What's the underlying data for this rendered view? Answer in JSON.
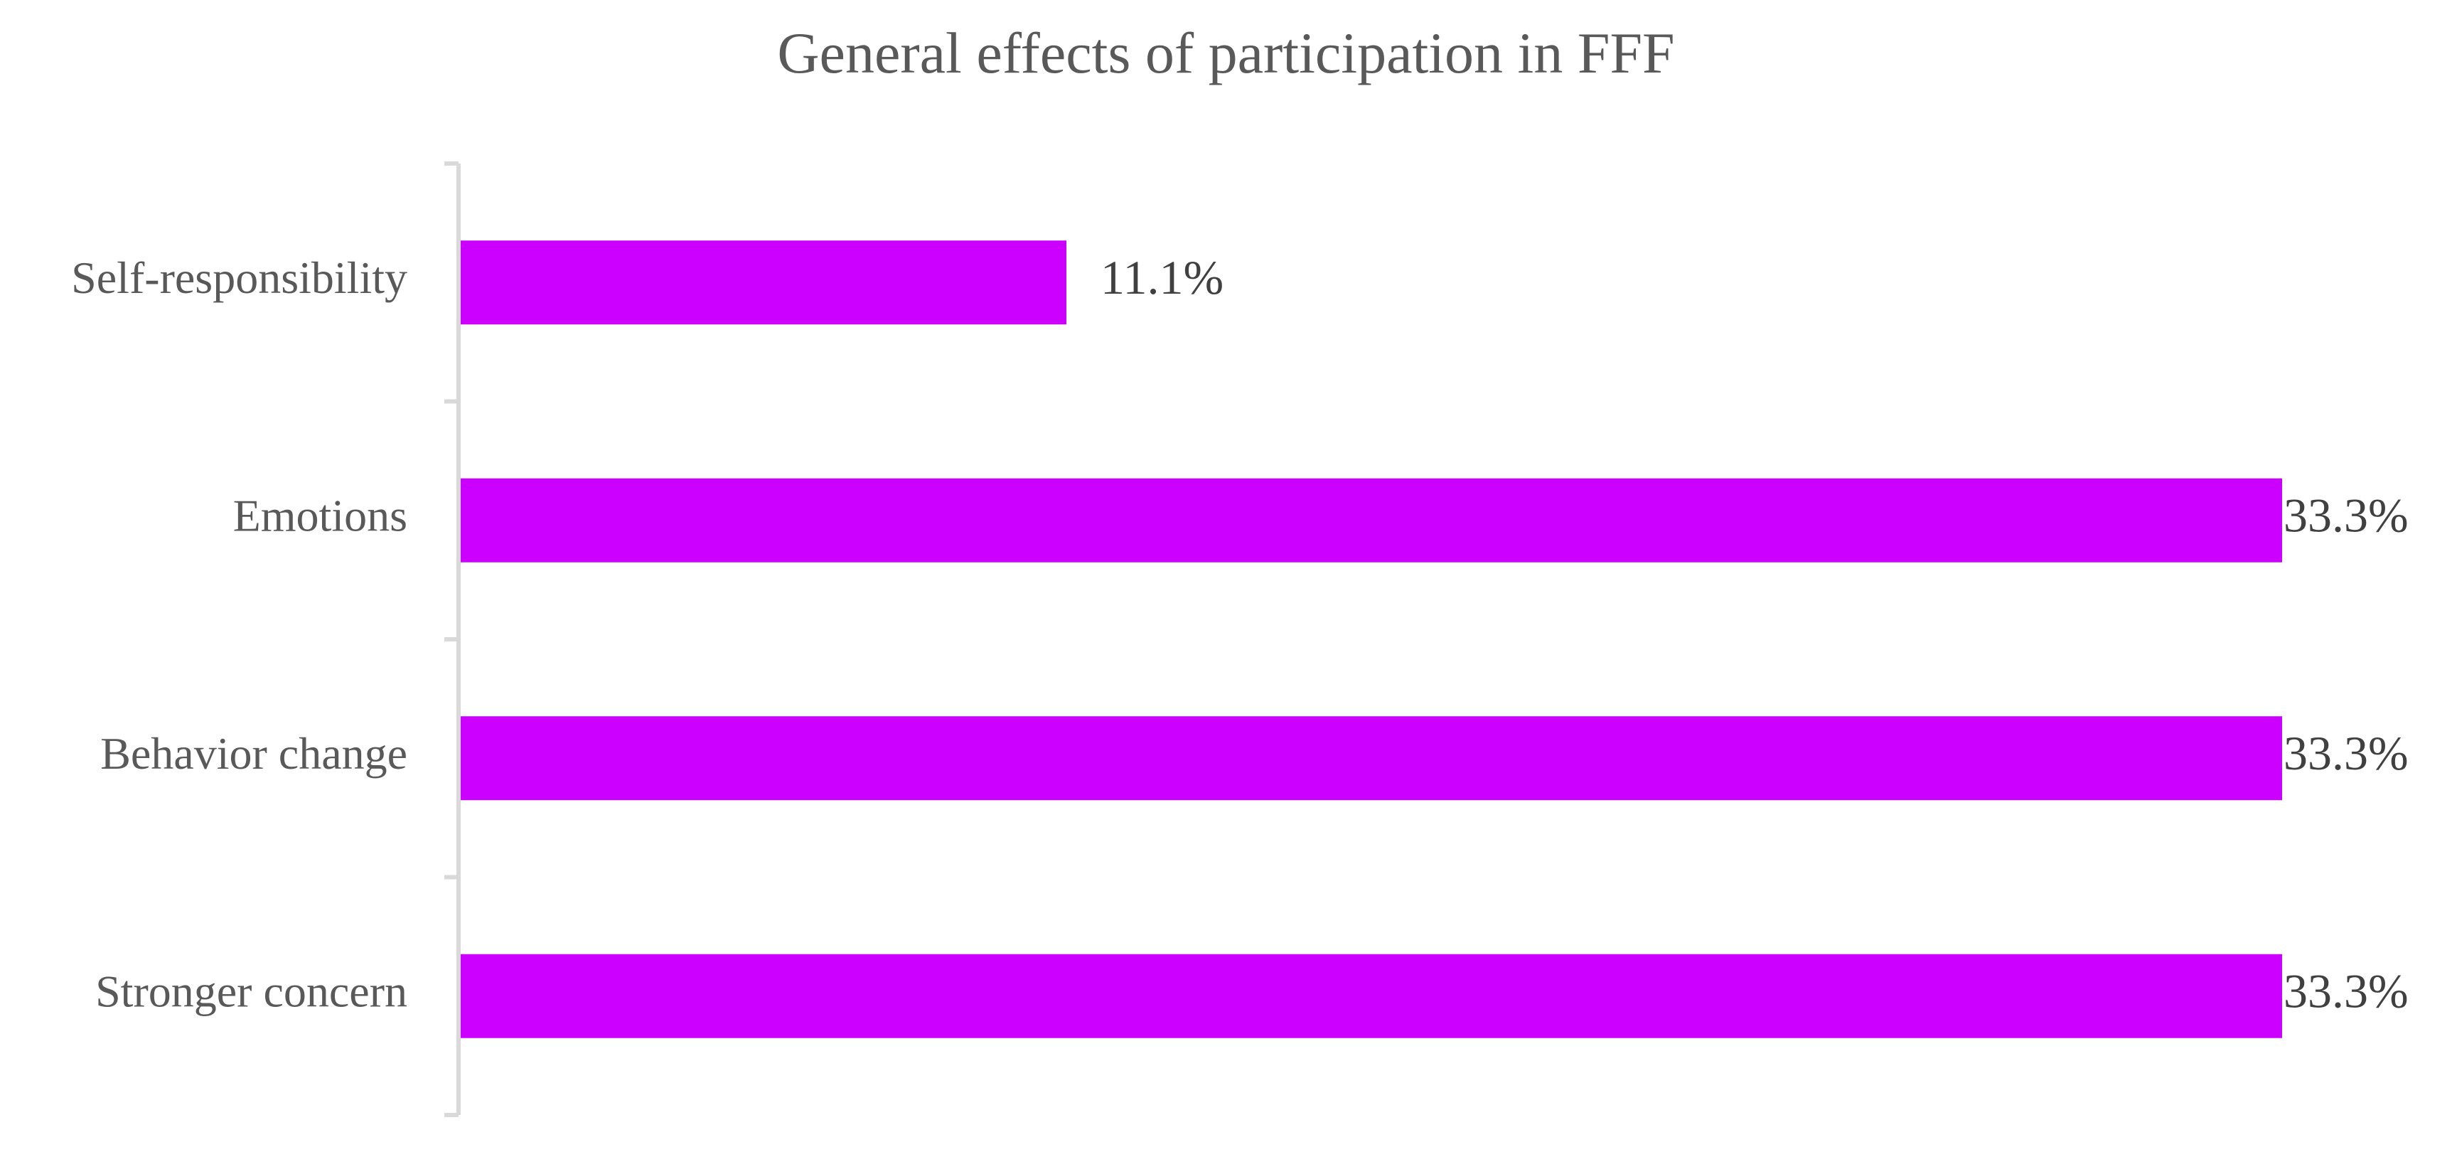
{
  "chart_data": {
    "type": "bar",
    "orientation": "horizontal",
    "title": "General effects of participation in FFF",
    "xlabel": "",
    "ylabel": "",
    "categories": [
      "Self-responsibility",
      "Emotions",
      "Behavior change",
      "Stronger concern"
    ],
    "values": [
      11.1,
      33.3,
      33.3,
      33.3
    ],
    "value_labels": [
      "11.1%",
      "33.3%",
      "33.3%",
      "33.3%"
    ],
    "xlim": [
      0,
      33.3
    ],
    "grid": false,
    "legend": "none",
    "colors": {
      "bar": "#CC00FF",
      "axis": "#D9D9D9",
      "title": "#595959",
      "category_label": "#595959",
      "value_label": "#404040"
    }
  }
}
